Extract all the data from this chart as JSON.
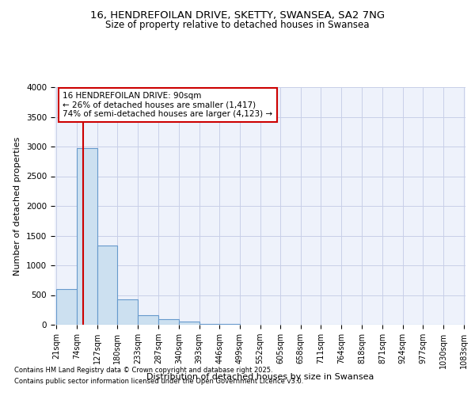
{
  "title1": "16, HENDREFOILAN DRIVE, SKETTY, SWANSEA, SA2 7NG",
  "title2": "Size of property relative to detached houses in Swansea",
  "xlabel": "Distribution of detached houses by size in Swansea",
  "ylabel": "Number of detached properties",
  "bar_edges": [
    21,
    74,
    127,
    180,
    233,
    287,
    340,
    393,
    446,
    499,
    552,
    605,
    658,
    711,
    764,
    818,
    871,
    924,
    977,
    1030,
    1083
  ],
  "bar_heights": [
    600,
    2970,
    1340,
    430,
    160,
    90,
    55,
    20,
    10,
    5,
    3,
    2,
    1,
    1,
    1,
    1,
    1,
    0,
    0,
    0
  ],
  "bar_color": "#cce0f0",
  "bar_edge_color": "#6699cc",
  "bar_alpha": 1.0,
  "red_line_x": 90,
  "red_line_color": "#cc0000",
  "annotation_title": "16 HENDREFOILAN DRIVE: 90sqm",
  "annotation_line1": "← 26% of detached houses are smaller (1,417)",
  "annotation_line2": "74% of semi-detached houses are larger (4,123) →",
  "annotation_box_color": "#ffffff",
  "annotation_box_edge_color": "#cc0000",
  "ylim": [
    0,
    4000
  ],
  "yticks": [
    0,
    500,
    1000,
    1500,
    2000,
    2500,
    3000,
    3500,
    4000
  ],
  "background_color": "#eef2fb",
  "grid_color": "#c8cfe8",
  "footnote1": "Contains HM Land Registry data © Crown copyright and database right 2025.",
  "footnote2": "Contains public sector information licensed under the Open Government Licence v3.0.",
  "title_fontsize": 9.5,
  "subtitle_fontsize": 8.5,
  "tick_label_fontsize": 7,
  "axis_label_fontsize": 8,
  "footnote_fontsize": 6
}
